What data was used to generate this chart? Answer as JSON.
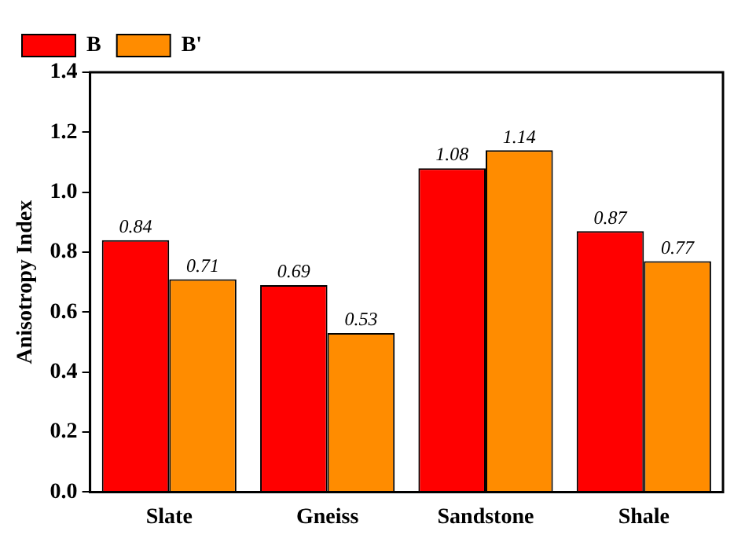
{
  "chart_data": {
    "type": "bar",
    "ylabel": "Anisotropy Index",
    "categories": [
      "Slate",
      "Gneiss",
      "Sandstone",
      "Shale"
    ],
    "series": [
      {
        "name": "B",
        "color": "#ff0000",
        "values": [
          0.84,
          0.69,
          1.08,
          0.87
        ]
      },
      {
        "name": "B'",
        "color": "#ff8c00",
        "values": [
          0.71,
          0.53,
          1.14,
          0.77
        ]
      }
    ],
    "ylim": [
      0,
      1.4
    ],
    "yticks": [
      {
        "value": 0,
        "label": "0.0"
      },
      {
        "value": 0.2,
        "label": "0.2"
      },
      {
        "value": 0.4,
        "label": "0.4"
      },
      {
        "value": 0.6,
        "label": "0.6"
      },
      {
        "value": 0.8,
        "label": "0.8"
      },
      {
        "value": 1.0,
        "label": "1.0"
      },
      {
        "value": 1.2,
        "label": "1.2"
      },
      {
        "value": 1.4,
        "label": "1.4"
      }
    ],
    "grid": false,
    "legend": "top left",
    "data_labels": true
  }
}
